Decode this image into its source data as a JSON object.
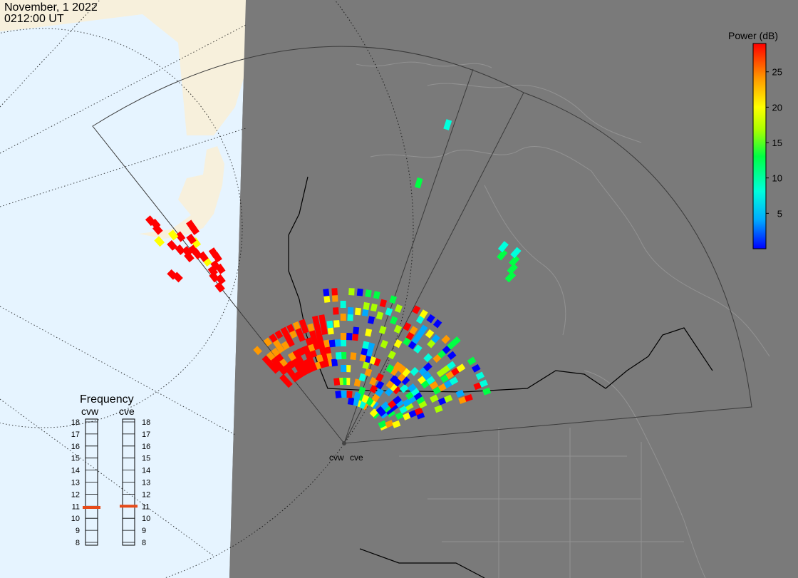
{
  "header": {
    "date": "November, 1 2022",
    "time": "0212:00 UT"
  },
  "colorbar": {
    "title": "Power (dB)",
    "ticks": [
      "25",
      "20",
      "15",
      "10",
      "5"
    ],
    "range": [
      0,
      29
    ],
    "colors": [
      "#0000ff",
      "#00aaff",
      "#00ffdd",
      "#00ff44",
      "#aaff00",
      "#ffff00",
      "#ff9900",
      "#ff0000"
    ]
  },
  "frequency_panel": {
    "title": "Frequency",
    "radars": [
      {
        "name": "cvw",
        "selected_mhz": 10.9
      },
      {
        "name": "cve",
        "selected_mhz": 11.0
      }
    ],
    "scale_labels": [
      "18",
      "17",
      "16",
      "15",
      "14",
      "13",
      "12",
      "11",
      "10",
      "9",
      "8"
    ]
  },
  "sites": [
    {
      "name": "cvw"
    },
    {
      "name": "cve"
    }
  ],
  "colors": {
    "night": "#7a7a7a",
    "ocean_day": "#e6f4ff",
    "land_day": "#f7f0dc",
    "fov_line": "#3a3a3a",
    "marker": "#e64a19"
  }
}
